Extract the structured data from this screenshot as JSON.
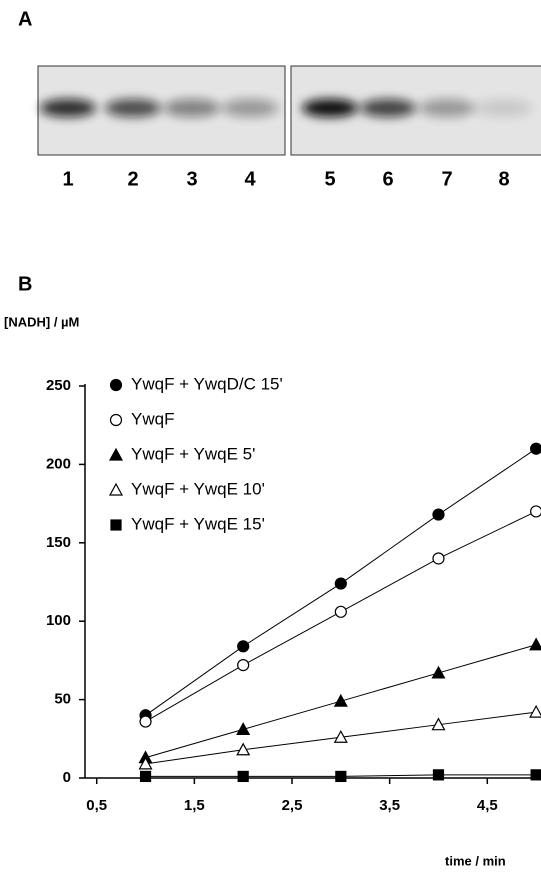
{
  "panel_a": {
    "label": "A",
    "lanes": [
      "1",
      "2",
      "3",
      "4",
      "5",
      "6",
      "7",
      "8"
    ]
  },
  "chart_data": {
    "type": "line",
    "panel_label": "B",
    "ylabel": "[NADH] / µM",
    "xlabel": "time / min",
    "x": [
      1,
      2,
      3,
      4,
      5
    ],
    "series": [
      {
        "name": "YwqF + YwqD/C 15'",
        "color": "#000000",
        "marker": "circle",
        "filled": true,
        "values": [
          40,
          84,
          124,
          168,
          210
        ]
      },
      {
        "name": "YwqF",
        "color": "#000000",
        "marker": "circle",
        "filled": false,
        "values": [
          36,
          72,
          106,
          140,
          170
        ]
      },
      {
        "name": "YwqF + YwqE 5'",
        "color": "#000000",
        "marker": "triangle",
        "filled": true,
        "values": [
          13,
          31,
          49,
          67,
          85
        ]
      },
      {
        "name": "YwqF + YwqE 10'",
        "color": "#000000",
        "marker": "triangle",
        "filled": false,
        "values": [
          9,
          18,
          26,
          34,
          42
        ]
      },
      {
        "name": "YwqF + YwqE 15'",
        "color": "#000000",
        "marker": "square",
        "filled": true,
        "values": [
          1,
          1,
          1,
          2,
          2
        ]
      }
    ],
    "xlim": [
      0.38,
      5.05
    ],
    "ylim": [
      0,
      250
    ],
    "xticks": [
      {
        "value": 0.5,
        "label": "0,5"
      },
      {
        "value": 1.5,
        "label": "1,5"
      },
      {
        "value": 2.5,
        "label": "2,5"
      },
      {
        "value": 3.5,
        "label": "3,5"
      },
      {
        "value": 4.5,
        "label": "4,5"
      }
    ],
    "yticks": [
      0,
      50,
      100,
      150,
      200,
      250
    ],
    "grid": false
  }
}
